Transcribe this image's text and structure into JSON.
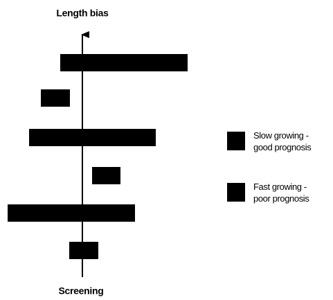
{
  "title": "Length bias",
  "axis_label": "Screening",
  "legend": [
    {
      "lines": [
        "Slow growing -",
        "good prognosis"
      ]
    },
    {
      "lines": [
        "Fast growing -",
        "poor prognosis"
      ]
    }
  ]
}
